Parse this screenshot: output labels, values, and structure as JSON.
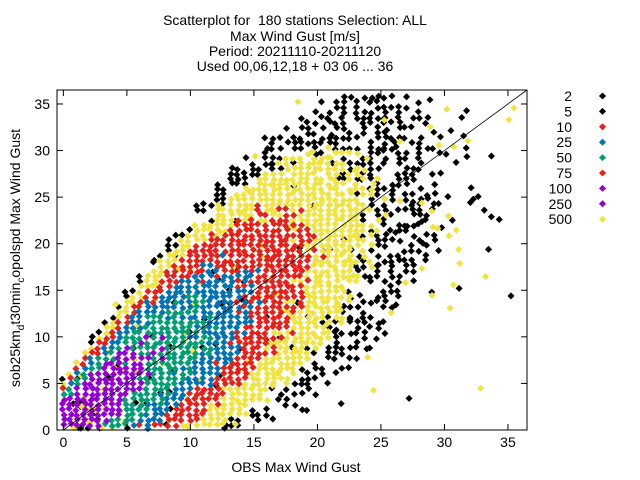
{
  "title_lines": [
    "Scatterplot for  180 stations Selection: ALL",
    "Max Wind Gust [m/s]",
    "Period: 20211110-20211120",
    "Used 00,06,12,18 + 03 06 ... 36"
  ],
  "chart_data": {
    "type": "scatter",
    "xlabel": "OBS Max Wind Gust",
    "ylabel_main": "sob25km",
    "ylabel_sub": "d",
    "ylabel_rest": "t30min",
    "ylabel_sub2": "c",
    "ylabel_tail": "opolspd Max Wind Gust",
    "xlim": [
      -0.5,
      36.5
    ],
    "ylim": [
      0,
      36.5
    ],
    "x_ticks": [
      0,
      5,
      10,
      15,
      20,
      25,
      30,
      35
    ],
    "y_ticks": [
      0,
      5,
      10,
      15,
      20,
      25,
      30,
      35
    ],
    "reference_line": "y = x",
    "legend_placement": "right",
    "density_classes": [
      {
        "name": "2",
        "color": "#000000"
      },
      {
        "name": "5",
        "color": "#000000"
      },
      {
        "name": "10",
        "color": "#e8201a"
      },
      {
        "name": "25",
        "color": "#0073b5"
      },
      {
        "name": "50",
        "color": "#009e73"
      },
      {
        "name": "75",
        "color": "#e8201a"
      },
      {
        "name": "100",
        "color": "#9400d3"
      },
      {
        "name": "250",
        "color": "#9400d3"
      },
      {
        "name": "500",
        "color": "#f0e442"
      }
    ]
  }
}
